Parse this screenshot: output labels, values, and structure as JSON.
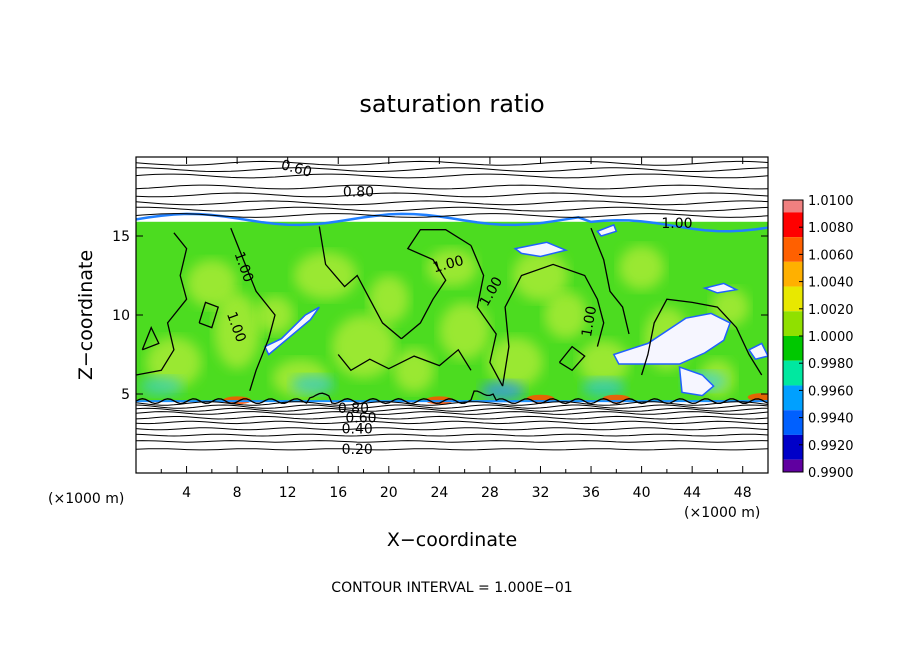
{
  "chart_data": {
    "type": "heatmap",
    "title": "saturation ratio",
    "xlabel": "X−coordinate",
    "ylabel": "Z−coordinate",
    "x_unit": "(×1000 m)",
    "y_unit": "(×1000 m)",
    "xlim": [
      0,
      50
    ],
    "ylim": [
      0,
      20
    ],
    "x_ticks": [
      4,
      8,
      12,
      16,
      20,
      24,
      28,
      32,
      36,
      40,
      44,
      48
    ],
    "y_ticks": [
      5,
      10,
      15
    ],
    "colorbar": {
      "levels": [
        "1.0100",
        "1.0080",
        "1.0060",
        "1.0040",
        "1.0020",
        "1.0000",
        "0.9980",
        "0.9960",
        "0.9940",
        "0.9920",
        "0.9900"
      ],
      "colors": [
        "#f08080",
        "#ff0000",
        "#ff6000",
        "#ffb000",
        "#e8e800",
        "#90e000",
        "#00c800",
        "#00e8a0",
        "#00a0ff",
        "#0060ff",
        "#0000c8",
        "#6000a0"
      ]
    },
    "contours": [
      {
        "level": 0.2,
        "label": "0.20",
        "z": 1.5
      },
      {
        "level": 0.4,
        "label": "0.40",
        "z": 2.8
      },
      {
        "level": 0.6,
        "label": "0.60",
        "z": 3.5
      },
      {
        "level": 0.8,
        "label": "0.80",
        "z": 4.0
      },
      {
        "level": 0.8,
        "label": "0.80",
        "z": 17.6
      },
      {
        "level": 0.6,
        "label": "0.60",
        "z": 19.2
      },
      {
        "level": 1.0,
        "label": "1.00",
        "z": null
      }
    ],
    "footer": "CONTOUR INTERVAL = 1.000E−01"
  }
}
